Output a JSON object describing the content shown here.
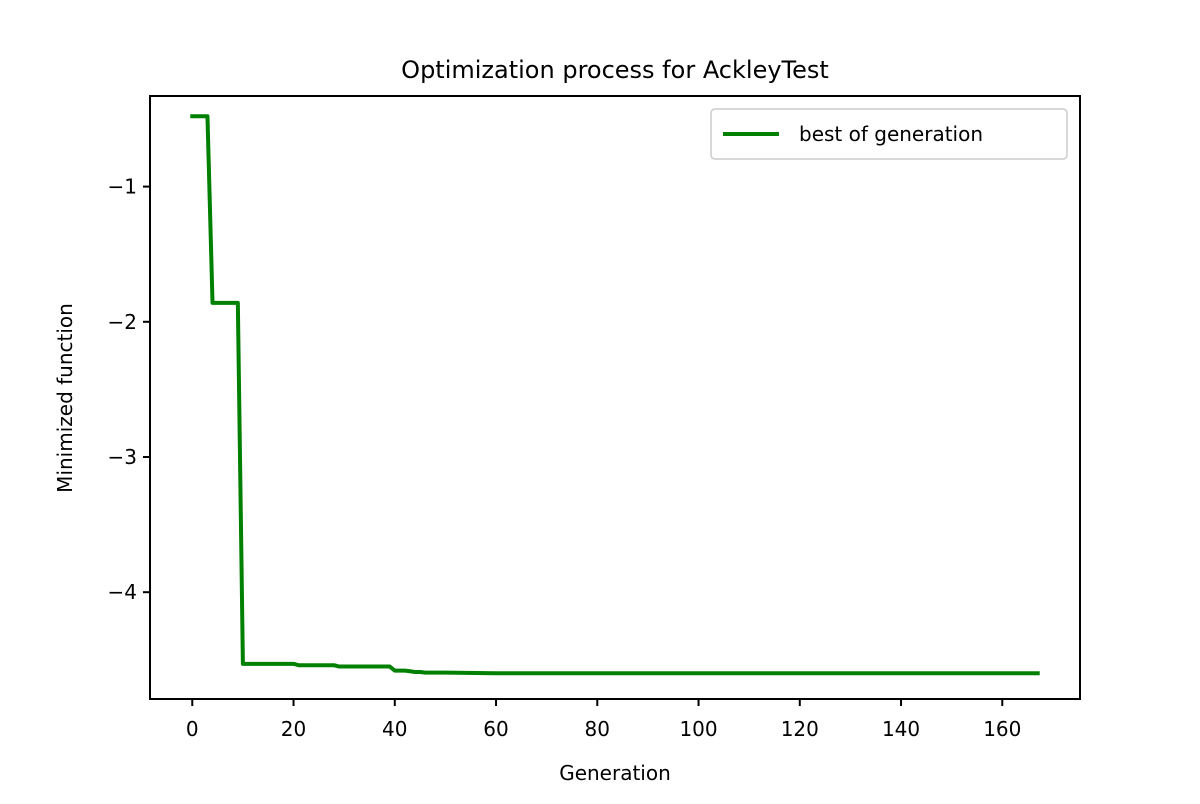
{
  "chart_data": {
    "type": "line",
    "title": "Optimization process for AckleyTest",
    "xlabel": "Generation",
    "ylabel": "Minimized function",
    "xlim": [
      -8.35,
      175.35
    ],
    "ylim": [
      -4.79,
      -0.33
    ],
    "xticks": [
      0,
      20,
      40,
      60,
      80,
      100,
      120,
      140,
      160
    ],
    "yticks": [
      -1,
      -2,
      -3,
      -4
    ],
    "ytick_labels": [
      "−1",
      "−2",
      "−3",
      "−4"
    ],
    "grid": false,
    "legend_position": "upper right",
    "series": [
      {
        "name": "best of generation",
        "color": "#008000",
        "x": [
          0,
          1,
          2,
          3,
          4,
          5,
          6,
          7,
          8,
          9,
          10,
          11,
          12,
          13,
          14,
          15,
          16,
          17,
          18,
          19,
          20,
          21,
          22,
          23,
          24,
          25,
          26,
          27,
          28,
          29,
          30,
          31,
          32,
          33,
          34,
          35,
          36,
          37,
          38,
          39,
          40,
          41,
          42,
          43,
          44,
          45,
          46,
          50,
          60,
          70,
          80,
          90,
          100,
          110,
          120,
          130,
          140,
          150,
          160,
          167
        ],
        "y": [
          -0.48,
          -0.48,
          -0.48,
          -0.48,
          -1.86,
          -1.86,
          -1.86,
          -1.86,
          -1.86,
          -1.86,
          -4.53,
          -4.53,
          -4.53,
          -4.53,
          -4.53,
          -4.53,
          -4.53,
          -4.53,
          -4.53,
          -4.53,
          -4.53,
          -4.54,
          -4.54,
          -4.54,
          -4.54,
          -4.54,
          -4.54,
          -4.54,
          -4.54,
          -4.55,
          -4.55,
          -4.55,
          -4.55,
          -4.55,
          -4.55,
          -4.55,
          -4.55,
          -4.55,
          -4.55,
          -4.55,
          -4.58,
          -4.58,
          -4.58,
          -4.585,
          -4.59,
          -4.59,
          -4.595,
          -4.595,
          -4.6,
          -4.6,
          -4.6,
          -4.6,
          -4.6,
          -4.6,
          -4.6,
          -4.6,
          -4.6,
          -4.6,
          -4.6,
          -4.6
        ]
      }
    ]
  }
}
